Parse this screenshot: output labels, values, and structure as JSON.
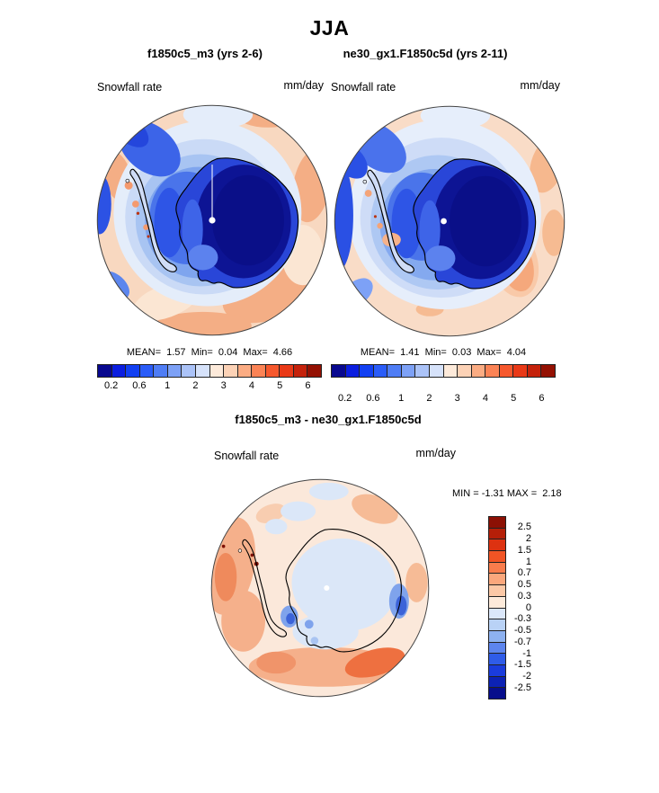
{
  "page": {
    "title": "JJA"
  },
  "panels": {
    "left": {
      "title": "f1850c5_m3 (yrs 2-6)",
      "variable": "Snowfall rate",
      "units": "mm/day",
      "stats": "MEAN=  1.57  Min=  0.04  Max=  4.66"
    },
    "right": {
      "title": "ne30_gx1.F1850c5d (yrs 2-11)",
      "variable": "Snowfall rate",
      "units": "mm/day",
      "stats": "MEAN=  1.41  Min=  0.03  Max=  4.04"
    },
    "diff": {
      "title": "f1850c5_m3 - ne30_gx1.F1850c5d",
      "variable": "Snowfall rate",
      "units": "mm/day",
      "stats": "MIN = -1.31 MAX =  2.18"
    }
  },
  "colorbars": {
    "snowfall": {
      "colors": [
        "#08088f",
        "#0b1ee0",
        "#1240f2",
        "#2a5cf8",
        "#4f7df5",
        "#7da1f6",
        "#abc3f8",
        "#d6e2fa",
        "#fdeada",
        "#fcd2b6",
        "#fbac83",
        "#fb8355",
        "#f6582d",
        "#e93917",
        "#c5220b",
        "#941103"
      ],
      "tick_labels": [
        "0.2",
        "0.6",
        "1",
        "2",
        "3",
        "4",
        "5",
        "6"
      ],
      "tick_positions": [
        1,
        3,
        5,
        7,
        9,
        11,
        13,
        15
      ],
      "n_bins": 16
    },
    "diff": {
      "colors": [
        "#8c1004",
        "#b51f08",
        "#dd3211",
        "#f25424",
        "#f97c4c",
        "#fba77c",
        "#fcc8a6",
        "#fdeada",
        "#dbe7fa",
        "#b9d2f6",
        "#8db1f0",
        "#5d85ee",
        "#2f5ce8",
        "#1a3cdc",
        "#0c22b4",
        "#070e8c"
      ],
      "labels": [
        "2.5",
        "2",
        "1.5",
        "1",
        "0.7",
        "0.5",
        "0.3",
        "0",
        "-0.3",
        "-0.5",
        "-0.7",
        "-1",
        "-1.5",
        "-2",
        "-2.5"
      ],
      "n_bins": 16
    }
  },
  "chart_data": [
    {
      "type": "heatmap",
      "subtype": "filled-contour-map",
      "title": "f1850c5_m3 (yrs 2-6)",
      "season": "JJA",
      "variable": "Snowfall rate",
      "units": "mm/day",
      "projection": "south polar stereographic (Antarctica)",
      "mean": 1.57,
      "min": 0.04,
      "max": 4.66,
      "contour_levels_labeled": [
        0.2,
        0.6,
        1,
        2,
        3,
        4,
        5,
        6
      ],
      "legend_position": "below"
    },
    {
      "type": "heatmap",
      "subtype": "filled-contour-map",
      "title": "ne30_gx1.F1850c5d (yrs 2-11)",
      "season": "JJA",
      "variable": "Snowfall rate",
      "units": "mm/day",
      "projection": "south polar stereographic (Antarctica)",
      "mean": 1.41,
      "min": 0.03,
      "max": 4.04,
      "contour_levels_labeled": [
        0.2,
        0.6,
        1,
        2,
        3,
        4,
        5,
        6
      ],
      "legend_position": "below"
    },
    {
      "type": "heatmap",
      "subtype": "filled-contour-difference-map",
      "title": "f1850c5_m3 - ne30_gx1.F1850c5d",
      "season": "JJA",
      "variable": "Snowfall rate",
      "units": "mm/day",
      "projection": "south polar stereographic (Antarctica)",
      "min": -1.31,
      "max": 2.18,
      "contour_levels_labeled": [
        -2.5,
        -2,
        -1.5,
        -1,
        -0.7,
        -0.5,
        -0.3,
        0,
        0.3,
        0.5,
        0.7,
        1,
        1.5,
        2,
        2.5
      ],
      "legend_position": "right"
    }
  ]
}
